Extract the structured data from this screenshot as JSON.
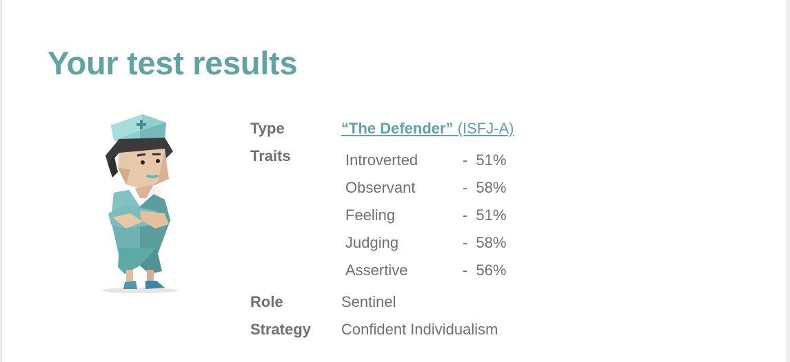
{
  "title": "Your test results",
  "labels": {
    "type": "Type",
    "traits": "Traits",
    "role": "Role",
    "strategy": "Strategy"
  },
  "type_link": {
    "name": "“The Defender”",
    "code": "(ISFJ-A)"
  },
  "traits": [
    {
      "name": "Introverted",
      "percent": "-  51%"
    },
    {
      "name": "Observant",
      "percent": "-  58%"
    },
    {
      "name": "Feeling",
      "percent": "-  51%"
    },
    {
      "name": "Judging",
      "percent": "-  58%"
    },
    {
      "name": "Assertive",
      "percent": "-  56%"
    }
  ],
  "role": "Sentinel",
  "strategy": "Confident Individualism"
}
